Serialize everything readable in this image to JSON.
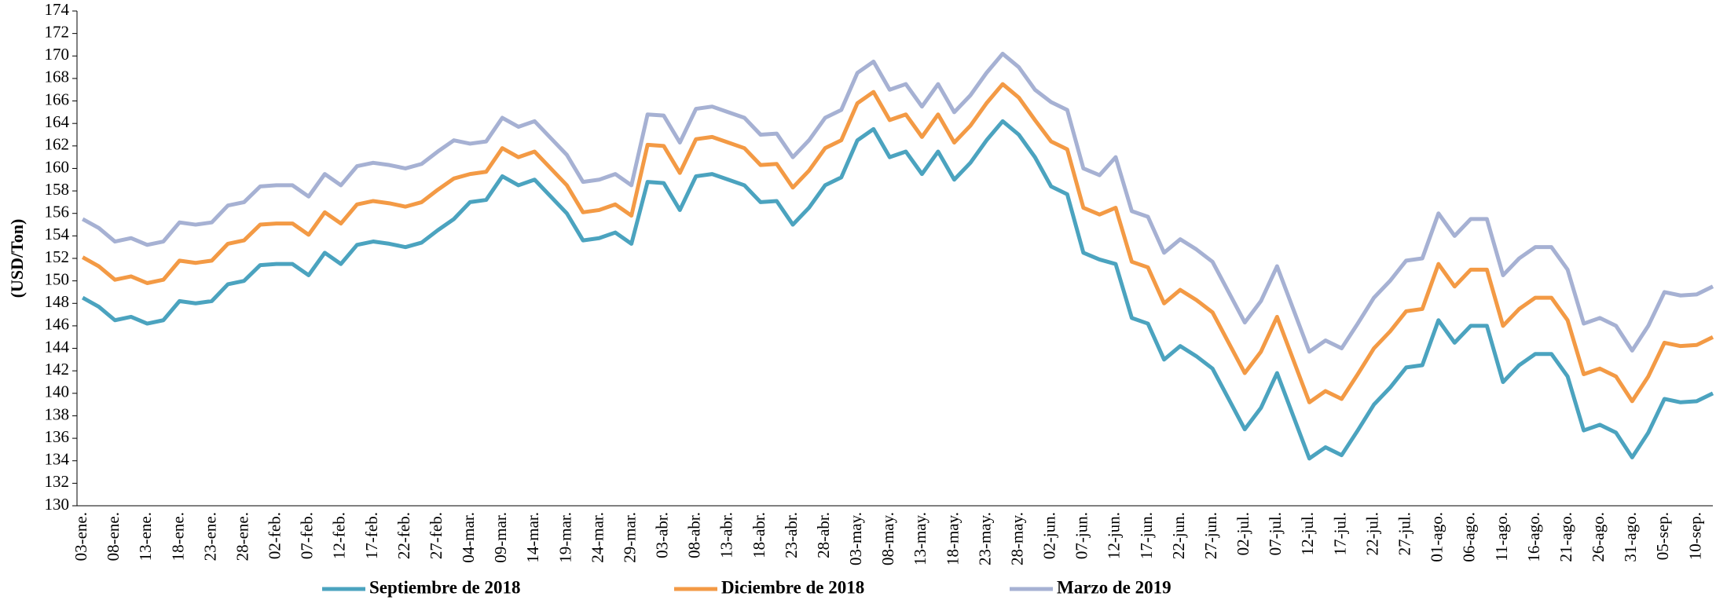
{
  "chart_data": {
    "type": "line",
    "y_label": "(USD/Ton)",
    "ylim": [
      130,
      174
    ],
    "yticks": [
      130,
      132,
      134,
      136,
      138,
      140,
      142,
      144,
      146,
      148,
      150,
      152,
      154,
      156,
      158,
      160,
      162,
      164,
      166,
      168,
      170,
      172,
      174
    ],
    "categories": [
      "03-ene.",
      null,
      "08-ene.",
      null,
      "13-ene.",
      null,
      "18-ene.",
      null,
      "23-ene.",
      null,
      "28-ene.",
      null,
      "02-feb.",
      null,
      "07-feb.",
      null,
      "12-feb.",
      null,
      "17-feb.",
      null,
      "22-feb.",
      null,
      "27-feb.",
      null,
      "04-mar.",
      null,
      "09-mar.",
      null,
      "14-mar.",
      null,
      "19-mar.",
      null,
      "24-mar.",
      null,
      "29-mar.",
      null,
      "03-abr.",
      null,
      "08-abr.",
      null,
      "13-abr.",
      null,
      "18-abr.",
      null,
      "23-abr.",
      null,
      "28-abr.",
      null,
      "03-may.",
      null,
      "08-may.",
      null,
      "13-may.",
      null,
      "18-may.",
      null,
      "23-may.",
      null,
      "28-may.",
      null,
      "02-jun.",
      null,
      "07-jun.",
      null,
      "12-jun.",
      null,
      "17-jun.",
      null,
      "22-jun.",
      null,
      "27-jun.",
      null,
      "02-jul.",
      null,
      "07-jul.",
      null,
      "12-jul.",
      null,
      "17-jul.",
      null,
      "22-jul.",
      null,
      "27-jul.",
      null,
      "01-ago.",
      null,
      "06-ago.",
      null,
      "11-ago.",
      null,
      "16-ago.",
      null,
      "21-ago.",
      null,
      "26-ago.",
      null,
      "31-ago.",
      null,
      "05-sep.",
      null,
      "10-sep.",
      null
    ],
    "series": [
      {
        "name": "Septiembre de 2018",
        "color": "#4ba3bf",
        "values": [
          148.5,
          147.7,
          146.5,
          146.8,
          146.2,
          146.5,
          148.2,
          148,
          148.2,
          149.7,
          150,
          151.4,
          151.5,
          151.5,
          150.5,
          152.5,
          151.5,
          153.2,
          153.5,
          153.3,
          153,
          153.4,
          154.5,
          155.5,
          157,
          157.2,
          159.3,
          158.5,
          159,
          157.5,
          156,
          153.6,
          153.8,
          154.3,
          153.3,
          158.8,
          158.7,
          156.3,
          159.3,
          159.5,
          159,
          158.5,
          157,
          157.1,
          155,
          156.5,
          158.5,
          159.2,
          162.5,
          163.5,
          161,
          161.5,
          159.5,
          161.5,
          159,
          160.5,
          162.5,
          164.2,
          163,
          161,
          158.4,
          157.7,
          152.5,
          151.9,
          151.5,
          146.7,
          146.2,
          143,
          144.2,
          143.3,
          142.2,
          139.5,
          136.8,
          138.7,
          141.8,
          138,
          134.2,
          135.2,
          134.5,
          136.7,
          139,
          140.5,
          142.3,
          142.5,
          146.5,
          144.5,
          146,
          146,
          141,
          142.5,
          143.5,
          143.5,
          141.5,
          136.7,
          137.2,
          136.5,
          134.3,
          136.5,
          139.5,
          139.2,
          139.3,
          140
        ]
      },
      {
        "name": "Diciembre de 2018",
        "color": "#f39a45",
        "values": [
          152.1,
          151.3,
          150.1,
          150.4,
          149.8,
          150.1,
          151.8,
          151.6,
          151.8,
          153.3,
          153.6,
          155,
          155.1,
          155.1,
          154.1,
          156.1,
          155.1,
          156.8,
          157.1,
          156.9,
          156.6,
          157,
          158.1,
          159.1,
          159.5,
          159.7,
          161.8,
          161,
          161.5,
          160,
          158.5,
          156.1,
          156.3,
          156.8,
          155.8,
          162.1,
          162,
          159.6,
          162.6,
          162.8,
          162.3,
          161.8,
          160.3,
          160.4,
          158.3,
          159.8,
          161.8,
          162.5,
          165.8,
          166.8,
          164.3,
          164.8,
          162.8,
          164.8,
          162.3,
          163.8,
          165.8,
          167.5,
          166.3,
          164.3,
          162.4,
          161.7,
          156.5,
          155.9,
          156.5,
          151.7,
          151.2,
          148,
          149.2,
          148.3,
          147.2,
          144.5,
          141.8,
          143.7,
          146.8,
          143,
          139.2,
          140.2,
          139.5,
          141.7,
          144,
          145.5,
          147.3,
          147.5,
          151.5,
          149.5,
          151,
          151,
          146,
          147.5,
          148.5,
          148.5,
          146.5,
          141.7,
          142.2,
          141.5,
          139.3,
          141.5,
          144.5,
          144.2,
          144.3,
          145
        ]
      },
      {
        "name": "Marzo de 2019",
        "color": "#a6b1d3",
        "values": [
          155.5,
          154.7,
          153.5,
          153.8,
          153.2,
          153.5,
          155.2,
          155,
          155.2,
          156.7,
          157,
          158.4,
          158.5,
          158.5,
          157.5,
          159.5,
          158.5,
          160.2,
          160.5,
          160.3,
          160,
          160.4,
          161.5,
          162.5,
          162.2,
          162.4,
          164.5,
          163.7,
          164.2,
          162.7,
          161.2,
          158.8,
          159,
          159.5,
          158.5,
          164.8,
          164.7,
          162.3,
          165.3,
          165.5,
          165,
          164.5,
          163,
          163.1,
          161,
          162.5,
          164.5,
          165.2,
          168.5,
          169.5,
          167,
          167.5,
          165.5,
          167.5,
          165,
          166.5,
          168.5,
          170.2,
          169,
          167,
          165.9,
          165.2,
          160,
          159.4,
          161,
          156.2,
          155.7,
          152.5,
          153.7,
          152.8,
          151.7,
          149,
          146.3,
          148.2,
          151.3,
          147.5,
          143.7,
          144.7,
          144,
          146.2,
          148.5,
          150,
          151.8,
          152,
          156,
          154,
          155.5,
          155.5,
          150.5,
          152,
          153,
          153,
          151,
          146.2,
          146.7,
          146,
          143.8,
          146,
          149,
          148.7,
          148.8,
          149.5
        ]
      }
    ],
    "legend_position": "bottom"
  }
}
